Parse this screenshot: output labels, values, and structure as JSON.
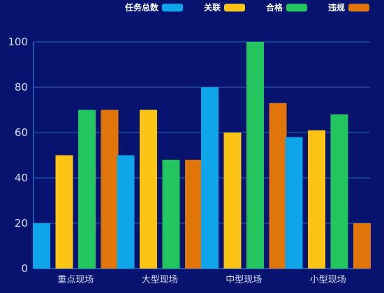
{
  "chart_data": {
    "type": "bar",
    "categories": [
      "重点现场",
      "大型现场",
      "中型现场",
      "小型现场"
    ],
    "series": [
      {
        "name": "任务总数",
        "values": [
          20,
          50,
          80,
          58
        ],
        "color": "#0ea5e9"
      },
      {
        "name": "关联",
        "values": [
          50,
          70,
          60,
          61
        ],
        "color": "#fcc515"
      },
      {
        "name": "合格",
        "values": [
          70,
          48,
          100,
          68
        ],
        "color": "#22c55e"
      },
      {
        "name": "违规",
        "values": [
          70,
          48,
          73,
          20
        ],
        "color": "#e0760a"
      }
    ],
    "ylim": [
      0,
      100
    ],
    "yticks": [
      0,
      20,
      40,
      60,
      80,
      100
    ],
    "grid": true,
    "legend_position": "top-right",
    "title": "",
    "xlabel": "",
    "ylabel": ""
  },
  "colors": {
    "background": "#07146f",
    "grid": "#1d4a9c",
    "axis": "#2f66c8",
    "text": "#d7def7"
  }
}
